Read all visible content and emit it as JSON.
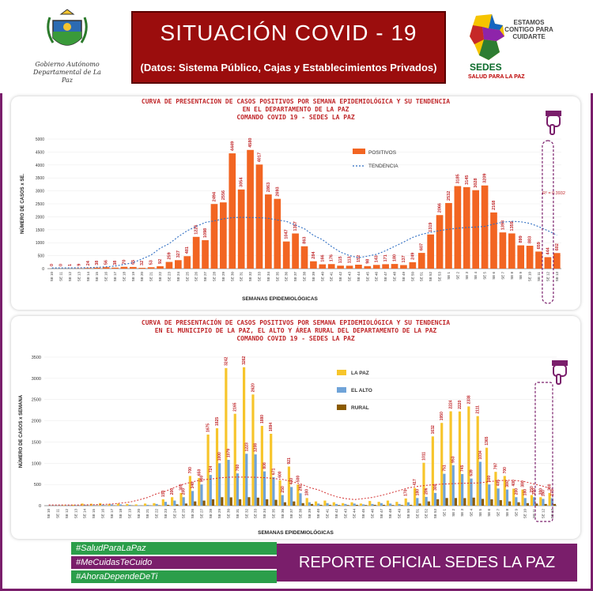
{
  "header": {
    "logo_left_text": [
      "Gobierno Autónomo",
      "Departamental de La Paz"
    ],
    "title": "SITUACIÓN  COVID - 19",
    "subtitle": "(Datos: Sistema Público, Cajas y Establecimientos Privados)",
    "logo_right_slogan": "ESTAMOS CONTIGO PARA CUIDARTE",
    "logo_right_brand": "SEDES",
    "logo_right_sub": "SALUD PARA LA PAZ"
  },
  "colors": {
    "frame": "#7a1e6b",
    "title_bg": "#9b0d0d",
    "bar_positivos": "#f26522",
    "bar_lapaz": "#f7c52b",
    "bar_elalto": "#6fa3d8",
    "bar_rural": "#8a5a00",
    "trend1": "#2f6ec2",
    "trend2": "#d32f2f",
    "value_labels": "#c0282b",
    "tags": [
      "#2b9e4a",
      "#2b9e4a",
      "#2b9e4a"
    ],
    "report_bg": "#7a1e6b"
  },
  "icons": [
    "pointing-hand-icon",
    "pointing-hand-icon"
  ],
  "chart_data": [
    {
      "type": "bar",
      "title_lines": [
        "CURVA DE PRESENTACION DE CASOS POSITIVOS POR SEMANA EPIDEMIOLÓGICA Y SU TENDENCIA",
        "EN EL DEPARTAMENTO DE LA PAZ",
        "COMANDO  COVID 19 - SEDES LA PAZ"
      ],
      "xlabel": "SEMANAS EPIDEMIOLÓGICAS",
      "ylabel": "NÚMERO DE CASOS x SE.",
      "ylim": [
        0,
        5000
      ],
      "yticks": [
        0,
        500,
        1000,
        1500,
        2000,
        2500,
        3000,
        3500,
        4000,
        4500,
        5000
      ],
      "categories": [
        "SE 10",
        "SE 11",
        "SE 12",
        "SE 13",
        "SE 14",
        "SE 15",
        "SE 16",
        "SE 17",
        "SE 18",
        "SE 19",
        "SE 20",
        "SE 21",
        "SE 22",
        "SE 23",
        "SE 24",
        "SE 25",
        "SE 26",
        "SE 27",
        "SE 28",
        "SE 29",
        "SE 30",
        "SE 31",
        "SE 32",
        "SE 33",
        "SE 34",
        "SE 35",
        "SE 36",
        "SE 37",
        "SE 38",
        "SE 39",
        "SE 40",
        "SE 41",
        "SE 42",
        "SE 43",
        "SE 44",
        "SE 45",
        "SE 46",
        "SE 47",
        "SE 48",
        "SE 49",
        "SE 50",
        "SE 51",
        "SE 52",
        "SE 53",
        "SE 1",
        "SE 2",
        "SE 3",
        "SE 4",
        "SE 5",
        "SE 6",
        "SE 7",
        "SE 8",
        "SE 9",
        "SE 10",
        "SE 11",
        "SE 12",
        "SE 13"
      ],
      "series": [
        {
          "name": "POSITIVOS",
          "values": [
            0,
            0,
            1,
            9,
            24,
            38,
            56,
            38,
            70,
            65,
            32,
            53,
            92,
            259,
            327,
            481,
            1226,
            1098,
            2494,
            2556,
            4449,
            3054,
            4580,
            4017,
            2863,
            2693,
            1047,
            1357,
            863,
            284,
            166,
            176,
            115,
            113,
            152,
            98,
            143,
            171,
            180,
            137,
            249,
            607,
            1319,
            2066,
            2532,
            3185,
            3145,
            3028,
            3209,
            2168,
            1398,
            1359,
            899,
            883,
            659,
            444,
            602
          ]
        }
      ],
      "trend_name": "TENDENCIA",
      "annotation": "R² = 0.3932",
      "legend_placement": "top-right"
    },
    {
      "type": "bar",
      "title_lines": [
        "CURVA DE PRESENTACIÓN DE CASOS POSITIVOS POR SEMANA EPIDEMIOLÓGICA Y SU TENDENCIA",
        "EN EL  MUNICIPIO DE LA PAZ, EL ALTO Y ÁREA RURAL DEL DEPARTAMENTO DE LA PAZ",
        "COMANDO  COVID  19 - SEDES LA PAZ"
      ],
      "xlabel": "SEMANAS EPIDEMIOLÓGICAS",
      "ylabel": "NÚMERO DE CASOS x SEMANA",
      "ylim": [
        0,
        3500
      ],
      "yticks": [
        0,
        500,
        1000,
        1500,
        2000,
        2500,
        3000,
        3500
      ],
      "categories": [
        "SE 10",
        "SE 11",
        "SE 12",
        "SE 13",
        "SE 14",
        "SE 15",
        "SE 16",
        "SE 17",
        "SE 18",
        "SE 19",
        "SE 20",
        "SE 21",
        "SE 22",
        "SE 23",
        "SE 24",
        "SE 25",
        "SE 26",
        "SE 27",
        "SE 28",
        "SE 29",
        "SE 30",
        "SE 31",
        "SE 32",
        "SE 33",
        "SE 34",
        "SE 35",
        "SE 36",
        "SE 37",
        "SE 38",
        "SE 39",
        "SE 40",
        "SE 41",
        "SE 42",
        "SE 43",
        "SE 44",
        "SE 45",
        "SE 46",
        "SE 47",
        "SE 48",
        "SE 49",
        "SE 50",
        "SE 51",
        "SE 52",
        "SE 53",
        "SE 1",
        "SE 2",
        "SE 3",
        "SE 4",
        "SE 5",
        "SE 6",
        "SE 7",
        "SE 8",
        "SE 9",
        "SE 10",
        "SE 11",
        "SE 12",
        "SE 13"
      ],
      "series": [
        {
          "name": "LA PAZ",
          "values": [
            0,
            0,
            10,
            20,
            50,
            45,
            60,
            40,
            50,
            40,
            30,
            50,
            60,
            150,
            200,
            300,
            700,
            650,
            1675,
            1825,
            3242,
            2165,
            3262,
            2620,
            1880,
            1694,
            600,
            921,
            500,
            180,
            100,
            120,
            80,
            60,
            80,
            50,
            110,
            90,
            120,
            90,
            170,
            417,
            1011,
            1632,
            1950,
            2224,
            2220,
            2338,
            2111,
            1365,
            797,
            700,
            400,
            380,
            250,
            200,
            300
          ]
        },
        {
          "name": "EL ALTO",
          "values": [
            0,
            0,
            5,
            10,
            20,
            15,
            20,
            30,
            30,
            20,
            10,
            20,
            40,
            90,
            120,
            200,
            346,
            500,
            724,
            1000,
            1079,
            760,
            1223,
            1208,
            808,
            671,
            250,
            440,
            292,
            80,
            50,
            60,
            40,
            40,
            50,
            30,
            40,
            60,
            50,
            40,
            80,
            180,
            206,
            300,
            751,
            953,
            745,
            639,
            1034,
            500,
            405,
            380,
            200,
            180,
            200,
            160,
            175
          ]
        },
        {
          "name": "RURAL",
          "values": [
            0,
            0,
            2,
            3,
            5,
            5,
            5,
            5,
            5,
            5,
            3,
            5,
            10,
            20,
            30,
            50,
            100,
            120,
            150,
            200,
            196,
            150,
            200,
            189,
            150,
            138,
            80,
            100,
            60,
            40,
            20,
            20,
            15,
            15,
            20,
            15,
            20,
            20,
            15,
            15,
            20,
            50,
            100,
            150,
            180,
            180,
            178,
            190,
            160,
            150,
            130,
            100,
            80,
            60,
            50,
            40,
            40
          ]
        }
      ],
      "legend_placement": "top-center"
    }
  ],
  "footer": {
    "hashtags": [
      "#SaludParaLaPaz",
      "#MeCuidasTeCuido",
      "#AhoraDependeDeTi"
    ],
    "report_label": "REPORTE OFICIAL SEDES LA PAZ"
  }
}
